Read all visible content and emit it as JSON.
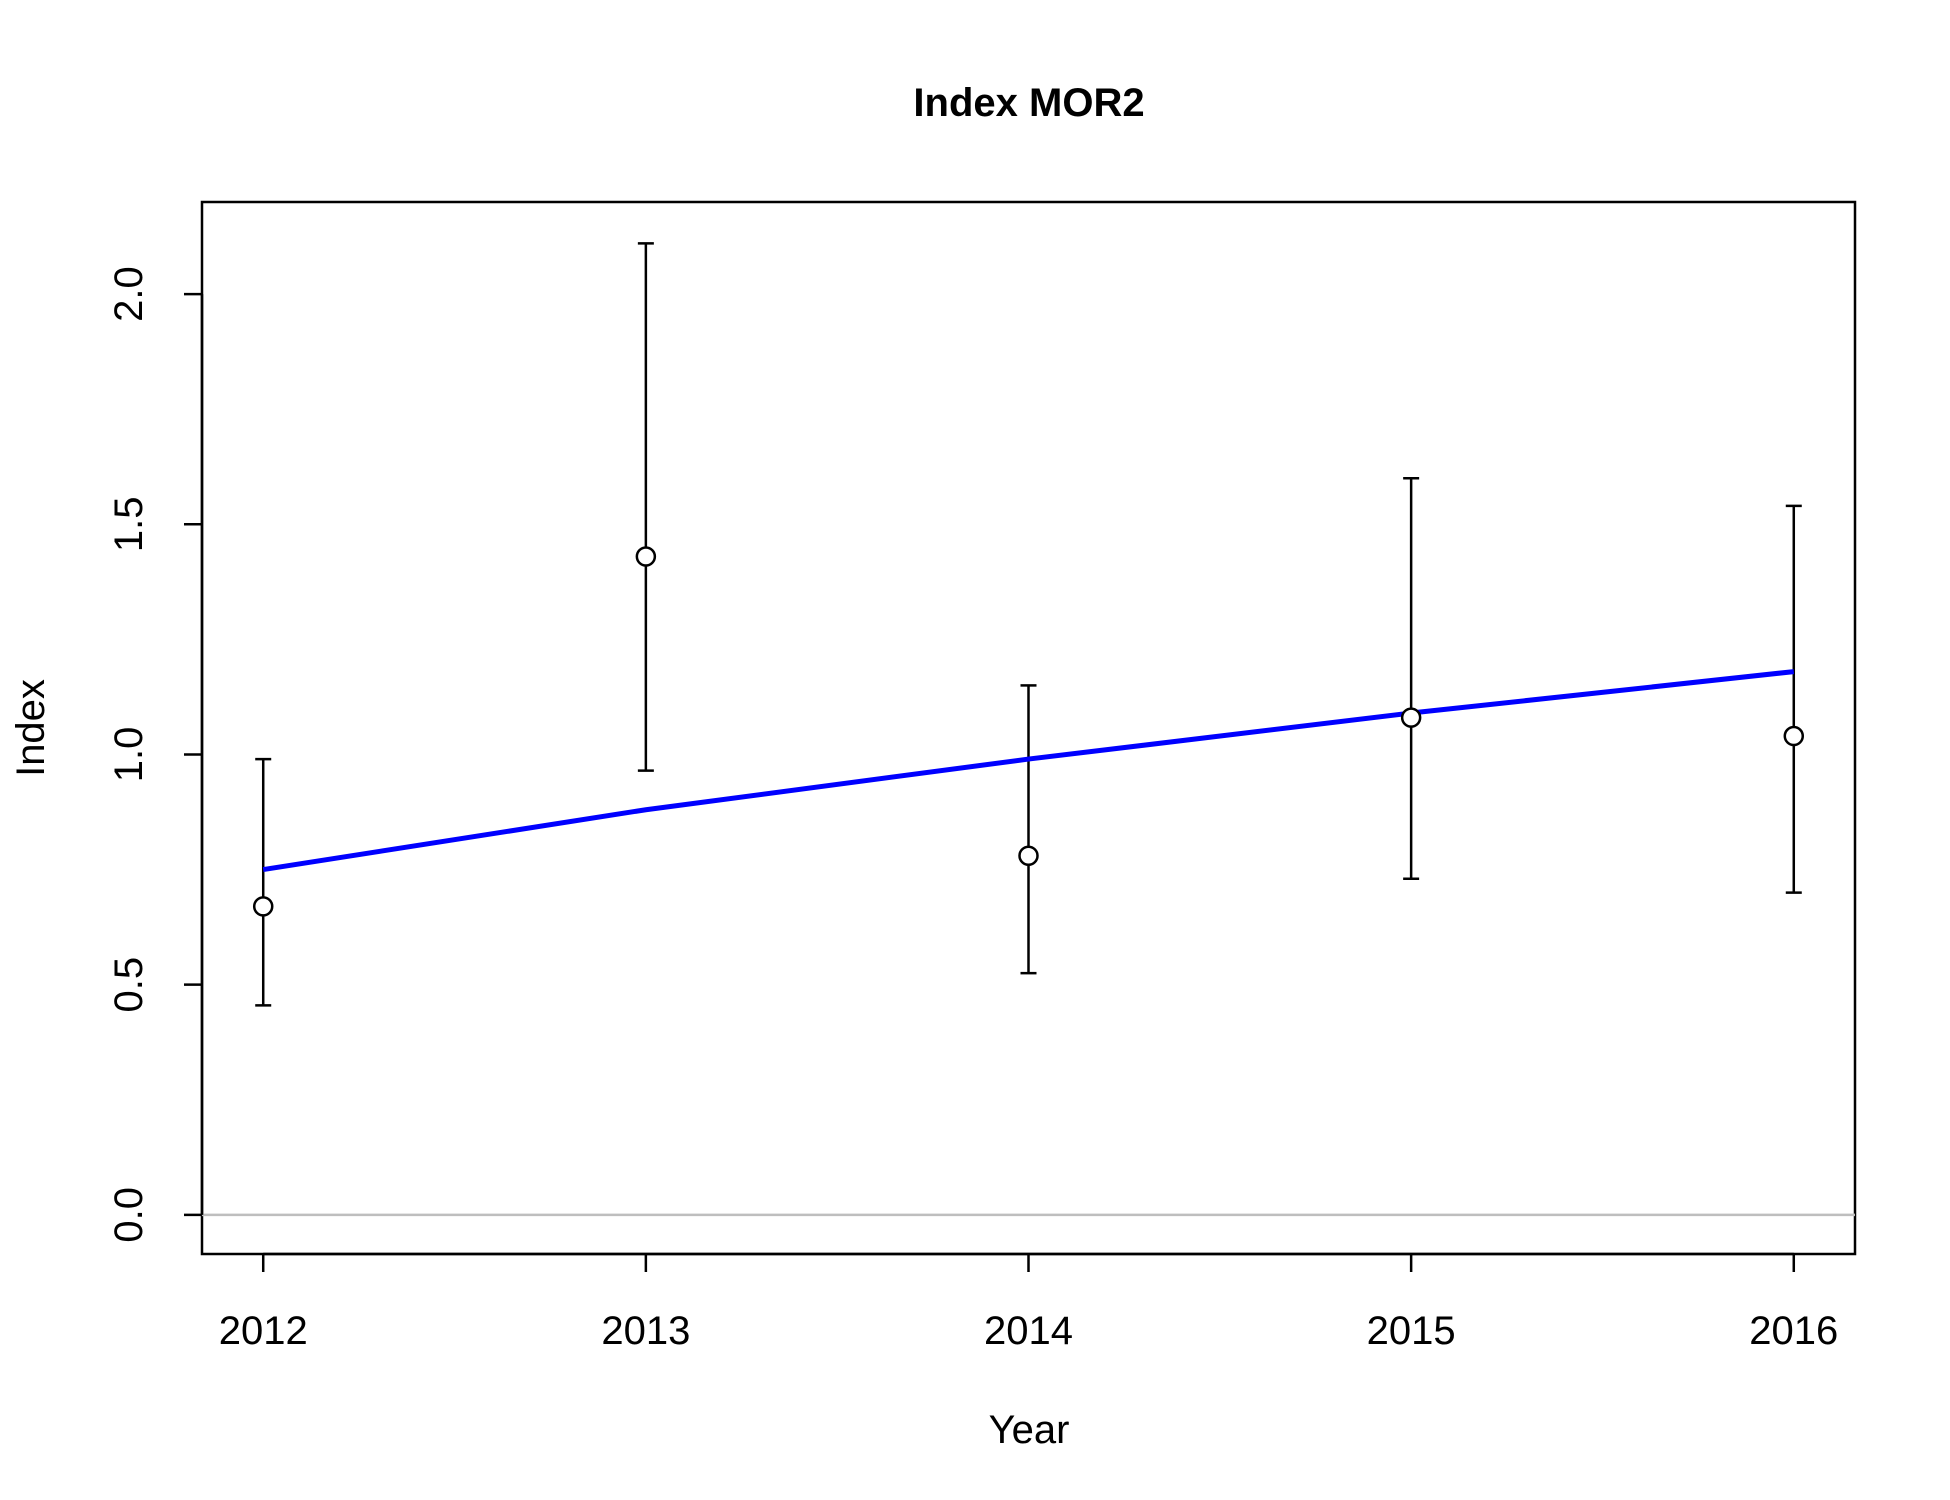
{
  "chart_data": {
    "type": "scatter",
    "title": "Index MOR2",
    "xlabel": "Year",
    "ylabel": "Index",
    "x": [
      2012,
      2013,
      2014,
      2015,
      2016
    ],
    "x_tick_labels": [
      "2012",
      "2013",
      "2014",
      "2015",
      "2016"
    ],
    "y_ticks": [
      0.0,
      0.5,
      1.0,
      1.5,
      2.0
    ],
    "y_tick_labels": [
      "0.0",
      "0.5",
      "1.0",
      "1.5",
      "2.0"
    ],
    "xlim": [
      2011.84,
      2016.16
    ],
    "ylim": [
      -0.085,
      2.2
    ],
    "observed": [
      0.67,
      1.43,
      0.78,
      1.08,
      1.04
    ],
    "lower": [
      0.455,
      0.965,
      0.525,
      0.73,
      0.7
    ],
    "upper": [
      0.99,
      2.11,
      1.15,
      1.6,
      1.54
    ],
    "fitted": [
      0.75,
      0.88,
      0.99,
      1.09,
      1.18
    ],
    "reference_line_y": 0.0,
    "grid": false,
    "colors": {
      "fit_line": "#0000ff",
      "points": "#000000",
      "error_bars": "#000000",
      "reference_line": "#bebebe",
      "frame": "#000000"
    }
  }
}
